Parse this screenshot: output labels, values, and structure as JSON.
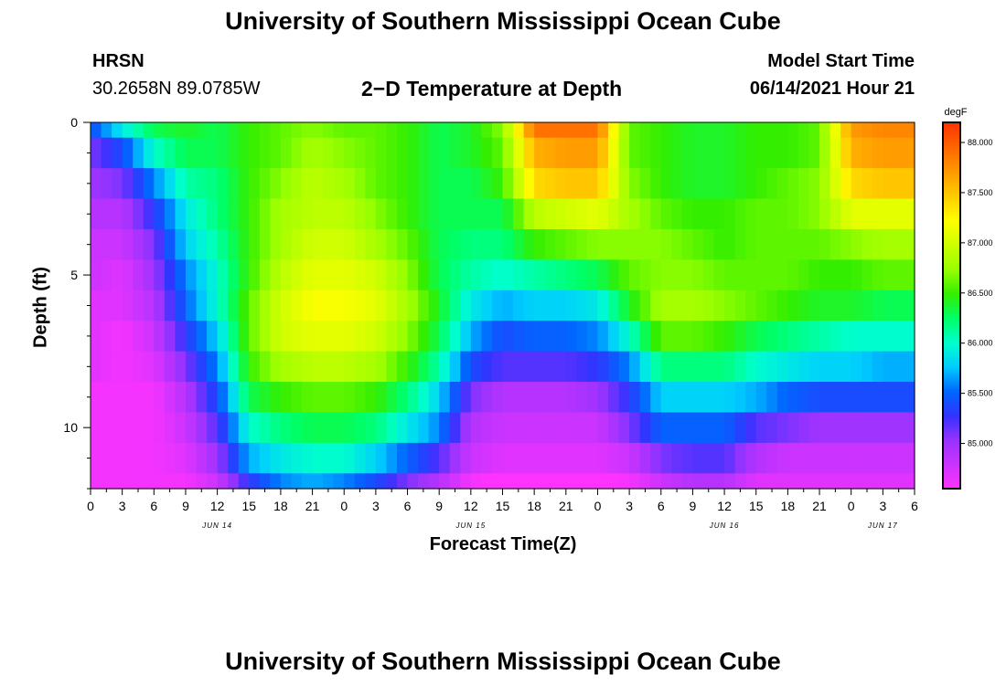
{
  "header": {
    "title": "University of Southern Mississippi Ocean Cube",
    "station": "HRSN",
    "coordinates": "30.2658N  89.0785W",
    "plot_title": "2−D Temperature at Depth",
    "model_start_label": "Model Start Time",
    "model_start_value": "06/14/2021 Hour 21"
  },
  "footer": {
    "title": "University of Southern Mississippi Ocean Cube"
  },
  "colors": {
    "palette": [
      "#ff33ff",
      "#cc33ff",
      "#9933ff",
      "#3333ff",
      "#0066ff",
      "#00ccff",
      "#00ffcc",
      "#00ff66",
      "#33ee00",
      "#99ff00",
      "#ccff00",
      "#ffff00",
      "#ffcc00",
      "#ff9900",
      "#ff6600",
      "#ff3300"
    ]
  },
  "chart_data": {
    "type": "heatmap",
    "xlabel": "Forecast Time(Z)",
    "ylabel": "Depth (ft)",
    "x_tick_labels": [
      "0",
      "3",
      "6",
      "9",
      "12",
      "15",
      "18",
      "21",
      "0",
      "3",
      "6",
      "9",
      "12",
      "15",
      "18",
      "21",
      "0",
      "3",
      "6",
      "9",
      "12",
      "15",
      "18",
      "21",
      "0",
      "3",
      "6"
    ],
    "x_range_hours": [
      0,
      78
    ],
    "date_labels": [
      {
        "label": "JUN 14",
        "hour": 12
      },
      {
        "label": "JUN 15",
        "hour": 36
      },
      {
        "label": "JUN 16",
        "hour": 60
      },
      {
        "label": "JUN 17",
        "hour": 75
      }
    ],
    "y_tick_labels": [
      "0",
      "5",
      "10"
    ],
    "y_range_ft": [
      0,
      12
    ],
    "colorbar": {
      "unit": "degF",
      "range": [
        84.55,
        88.2
      ],
      "tick_labels": [
        "88.000",
        "87.500",
        "87.000",
        "86.500",
        "86.000",
        "85.500",
        "85.000"
      ],
      "tick_values": [
        88.0,
        87.5,
        87.0,
        86.5,
        86.0,
        85.5,
        85.0
      ]
    },
    "hours": [
      0,
      3,
      6,
      9,
      12,
      15,
      18,
      21,
      24,
      27,
      30,
      33,
      36,
      39,
      42,
      45,
      48,
      51,
      54,
      57,
      60,
      63,
      66,
      69,
      72,
      75,
      78
    ],
    "depths_ft": [
      0,
      1,
      2,
      3,
      4,
      5,
      6,
      7,
      8,
      9,
      10,
      11,
      12
    ],
    "rows_degF": [
      [
        85.4,
        85.9,
        86.3,
        86.4,
        86.3,
        86.5,
        86.6,
        86.7,
        86.6,
        86.6,
        86.5,
        86.3,
        86.4,
        86.7,
        87.9,
        87.9,
        87.9,
        86.6,
        86.5,
        86.4,
        86.4,
        86.5,
        86.5,
        86.6,
        87.7,
        87.8,
        87.8
      ],
      [
        85.1,
        85.4,
        86.0,
        86.3,
        86.3,
        86.5,
        86.6,
        86.8,
        86.7,
        86.6,
        86.5,
        86.3,
        86.4,
        86.6,
        87.6,
        87.7,
        87.7,
        86.6,
        86.5,
        86.4,
        86.4,
        86.5,
        86.5,
        86.6,
        87.6,
        87.7,
        87.7
      ],
      [
        85.0,
        85.1,
        85.6,
        86.1,
        86.2,
        86.5,
        86.7,
        86.9,
        86.8,
        86.6,
        86.5,
        86.3,
        86.3,
        86.5,
        87.4,
        87.5,
        87.5,
        86.7,
        86.5,
        86.4,
        86.4,
        86.5,
        86.6,
        86.7,
        87.4,
        87.5,
        87.5
      ],
      [
        84.9,
        84.9,
        85.3,
        85.9,
        86.2,
        86.5,
        86.8,
        86.9,
        86.9,
        86.7,
        86.5,
        86.3,
        86.3,
        86.3,
        86.9,
        87.0,
        87.1,
        86.8,
        86.6,
        86.5,
        86.5,
        86.6,
        86.6,
        86.7,
        87.1,
        87.1,
        87.1
      ],
      [
        84.8,
        84.8,
        85.1,
        85.8,
        86.1,
        86.5,
        86.8,
        87.0,
        87.0,
        86.8,
        86.6,
        86.3,
        86.2,
        86.2,
        86.5,
        86.6,
        86.7,
        86.7,
        86.7,
        86.6,
        86.5,
        86.6,
        86.6,
        86.6,
        86.7,
        86.8,
        86.8
      ],
      [
        84.8,
        84.7,
        85.0,
        85.6,
        86.0,
        86.5,
        86.9,
        87.1,
        87.1,
        87.0,
        86.7,
        86.3,
        86.1,
        86.0,
        86.1,
        86.2,
        86.3,
        86.6,
        86.7,
        86.7,
        86.6,
        86.6,
        86.6,
        86.5,
        86.5,
        86.6,
        86.6
      ],
      [
        84.7,
        84.7,
        84.9,
        85.5,
        86.0,
        86.6,
        87.0,
        87.2,
        87.2,
        87.1,
        86.8,
        86.4,
        85.9,
        85.7,
        85.8,
        85.8,
        85.9,
        86.4,
        86.8,
        86.8,
        86.7,
        86.6,
        86.5,
        86.4,
        86.4,
        86.3,
        86.3
      ],
      [
        84.7,
        84.6,
        84.8,
        85.3,
        85.8,
        86.6,
        87.0,
        87.1,
        87.1,
        87.0,
        86.7,
        86.3,
        85.7,
        85.4,
        85.5,
        85.5,
        85.6,
        86.0,
        86.6,
        86.6,
        86.5,
        86.3,
        86.2,
        86.1,
        86.0,
        86.0,
        86.0
      ],
      [
        84.7,
        84.6,
        84.7,
        85.1,
        85.6,
        86.5,
        86.8,
        86.9,
        86.9,
        86.8,
        86.5,
        86.1,
        85.4,
        85.2,
        85.2,
        85.2,
        85.3,
        85.6,
        86.2,
        86.2,
        86.2,
        86.0,
        85.9,
        85.8,
        85.8,
        85.7,
        85.7
      ],
      [
        84.6,
        84.6,
        84.6,
        84.9,
        85.4,
        86.3,
        86.5,
        86.6,
        86.6,
        86.5,
        86.2,
        85.8,
        85.1,
        84.9,
        84.9,
        84.9,
        85.0,
        85.3,
        85.8,
        85.8,
        85.8,
        85.7,
        85.5,
        85.4,
        85.4,
        85.4,
        85.4
      ],
      [
        84.6,
        84.6,
        84.6,
        84.8,
        85.2,
        86.0,
        86.2,
        86.3,
        86.3,
        86.2,
        85.9,
        85.6,
        84.9,
        84.8,
        84.8,
        84.8,
        84.8,
        85.1,
        85.5,
        85.5,
        85.5,
        85.2,
        85.1,
        85.0,
        85.0,
        85.0,
        85.0
      ],
      [
        84.6,
        84.6,
        84.6,
        84.7,
        85.0,
        85.7,
        85.9,
        86.0,
        86.0,
        85.8,
        85.5,
        85.2,
        84.8,
        84.7,
        84.7,
        84.7,
        84.7,
        84.8,
        85.1,
        85.2,
        85.2,
        84.9,
        84.8,
        84.8,
        84.8,
        84.8,
        84.8
      ],
      [
        84.6,
        84.6,
        84.6,
        84.6,
        84.8,
        85.3,
        85.6,
        85.7,
        85.6,
        85.4,
        85.1,
        84.9,
        84.6,
        84.5,
        84.5,
        84.5,
        84.5,
        84.6,
        84.8,
        84.9,
        84.9,
        84.7,
        84.7,
        84.7,
        84.7,
        84.7,
        84.7
      ]
    ]
  }
}
